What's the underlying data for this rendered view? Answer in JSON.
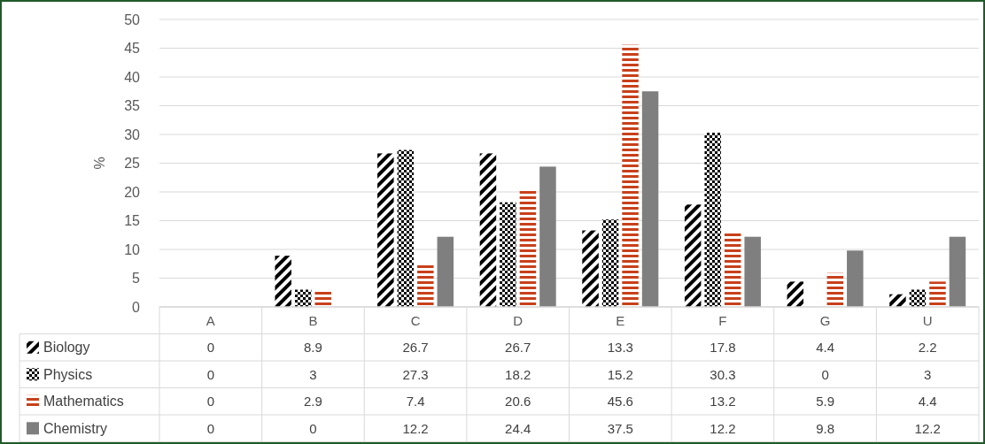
{
  "chart_data": {
    "type": "bar",
    "ylabel": "%",
    "categories": [
      "A",
      "B",
      "C",
      "D",
      "E",
      "F",
      "G",
      "U"
    ],
    "series": [
      {
        "name": "Biology",
        "color": "#000000",
        "values": [
          0,
          8.9,
          26.7,
          26.7,
          13.3,
          17.8,
          4.4,
          2.2
        ]
      },
      {
        "name": "Physics",
        "color": "#000000",
        "values": [
          0,
          3,
          27.3,
          18.2,
          15.2,
          30.3,
          0,
          3
        ]
      },
      {
        "name": "Mathematics",
        "color": "#c8401a",
        "values": [
          0,
          2.9,
          7.4,
          20.6,
          45.6,
          13.2,
          5.9,
          4.4
        ]
      },
      {
        "name": "Chemistry",
        "color": "#7f7f7f",
        "values": [
          0,
          0,
          12.2,
          24.4,
          37.5,
          12.2,
          9.8,
          12.2
        ]
      }
    ],
    "ylim": [
      0,
      50
    ],
    "yticks": [
      0,
      5,
      10,
      15,
      20,
      25,
      30,
      35,
      40,
      45,
      50
    ],
    "grid": "y",
    "legend": "bottom",
    "data_labels": true
  }
}
